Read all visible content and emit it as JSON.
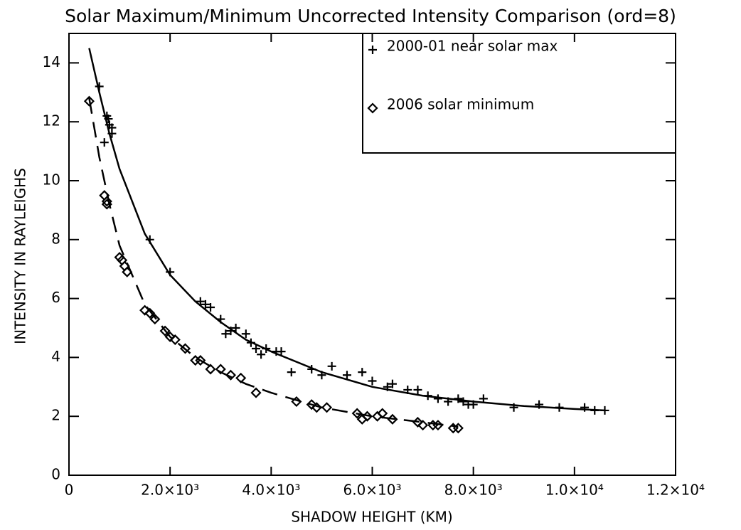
{
  "chart_data": {
    "type": "scatter",
    "title": "Solar Maximum/Minimum Uncorrected Intensity Comparison (ord=8)",
    "xlabel": "SHADOW HEIGHT  (KM)",
    "ylabel": "INTENSITY IN RAYLEIGHS",
    "xlim": [
      0,
      12000
    ],
    "ylim": [
      0,
      15
    ],
    "xticks": [
      0,
      {
        "value": 2000,
        "label": "2.0×10³"
      },
      {
        "value": 4000,
        "label": "4.0×10³"
      },
      {
        "value": 6000,
        "label": "6.0×10³"
      },
      {
        "value": 8000,
        "label": "8.0×10³"
      },
      {
        "value": 10000,
        "label": "1.0×10⁴"
      },
      {
        "value": 12000,
        "label": "1.2×10⁴"
      }
    ],
    "yticks": [
      0,
      2,
      4,
      6,
      8,
      10,
      12,
      14
    ],
    "legend": "upper right",
    "series": [
      {
        "name": "2000-01 near solar max",
        "marker": "plus",
        "color": "#000000",
        "x": [
          600,
          700,
          750,
          780,
          800,
          850,
          850,
          1600,
          2000,
          2600,
          2700,
          2800,
          3000,
          3100,
          3200,
          3300,
          3500,
          3600,
          3700,
          3800,
          3900,
          4100,
          4200,
          4400,
          4800,
          5000,
          5200,
          5500,
          5800,
          6000,
          6300,
          6400,
          6700,
          6900,
          7100,
          7300,
          7500,
          7700,
          7800,
          7900,
          8000,
          8200,
          8800,
          9300,
          9700,
          10200,
          10400,
          10600
        ],
        "values": [
          13.2,
          11.3,
          12.2,
          12.1,
          11.9,
          11.8,
          11.6,
          8.0,
          6.9,
          5.9,
          5.8,
          5.7,
          5.3,
          4.8,
          4.9,
          5.0,
          4.8,
          4.5,
          4.3,
          4.1,
          4.3,
          4.2,
          4.2,
          3.5,
          3.6,
          3.4,
          3.7,
          3.4,
          3.5,
          3.2,
          3.0,
          3.1,
          2.9,
          2.9,
          2.7,
          2.6,
          2.5,
          2.6,
          2.5,
          2.4,
          2.4,
          2.6,
          2.3,
          2.4,
          2.3,
          2.3,
          2.2,
          2.2
        ]
      },
      {
        "name": "2006 solar minimum",
        "marker": "diamond",
        "color": "#000000",
        "x": [
          400,
          700,
          750,
          750,
          1000,
          1050,
          1100,
          1150,
          1500,
          1600,
          1700,
          1900,
          2000,
          2100,
          2300,
          2500,
          2600,
          2800,
          3000,
          3200,
          3400,
          3700,
          4500,
          4800,
          4900,
          5100,
          5700,
          5800,
          5900,
          6100,
          6200,
          6400,
          6900,
          7000,
          7200,
          7300,
          7600,
          7700
        ],
        "values": [
          12.7,
          9.5,
          9.3,
          9.2,
          7.4,
          7.3,
          7.1,
          6.9,
          5.6,
          5.5,
          5.3,
          4.9,
          4.7,
          4.6,
          4.3,
          3.9,
          3.9,
          3.6,
          3.6,
          3.4,
          3.3,
          2.8,
          2.5,
          2.4,
          2.3,
          2.3,
          2.1,
          1.9,
          2.0,
          2.0,
          2.1,
          1.9,
          1.8,
          1.7,
          1.7,
          1.7,
          1.6,
          1.6
        ]
      }
    ],
    "fits": [
      {
        "dash": false,
        "color": "#000000",
        "x": [
          400,
          600,
          800,
          1000,
          1500,
          2000,
          2500,
          3000,
          3500,
          4000,
          5000,
          6000,
          7000,
          8000,
          9000,
          10000,
          10600
        ],
        "values": [
          14.5,
          13.0,
          11.6,
          10.4,
          8.2,
          6.8,
          5.9,
          5.2,
          4.6,
          4.2,
          3.5,
          3.0,
          2.7,
          2.5,
          2.35,
          2.25,
          2.2
        ]
      },
      {
        "dash": true,
        "color": "#000000",
        "x": [
          400,
          600,
          800,
          1000,
          1500,
          2000,
          2500,
          3000,
          3500,
          4000,
          5000,
          6000,
          7000,
          7700
        ],
        "values": [
          12.8,
          10.8,
          9.2,
          7.8,
          5.8,
          4.7,
          4.0,
          3.5,
          3.1,
          2.8,
          2.3,
          2.0,
          1.8,
          1.65
        ]
      }
    ]
  }
}
